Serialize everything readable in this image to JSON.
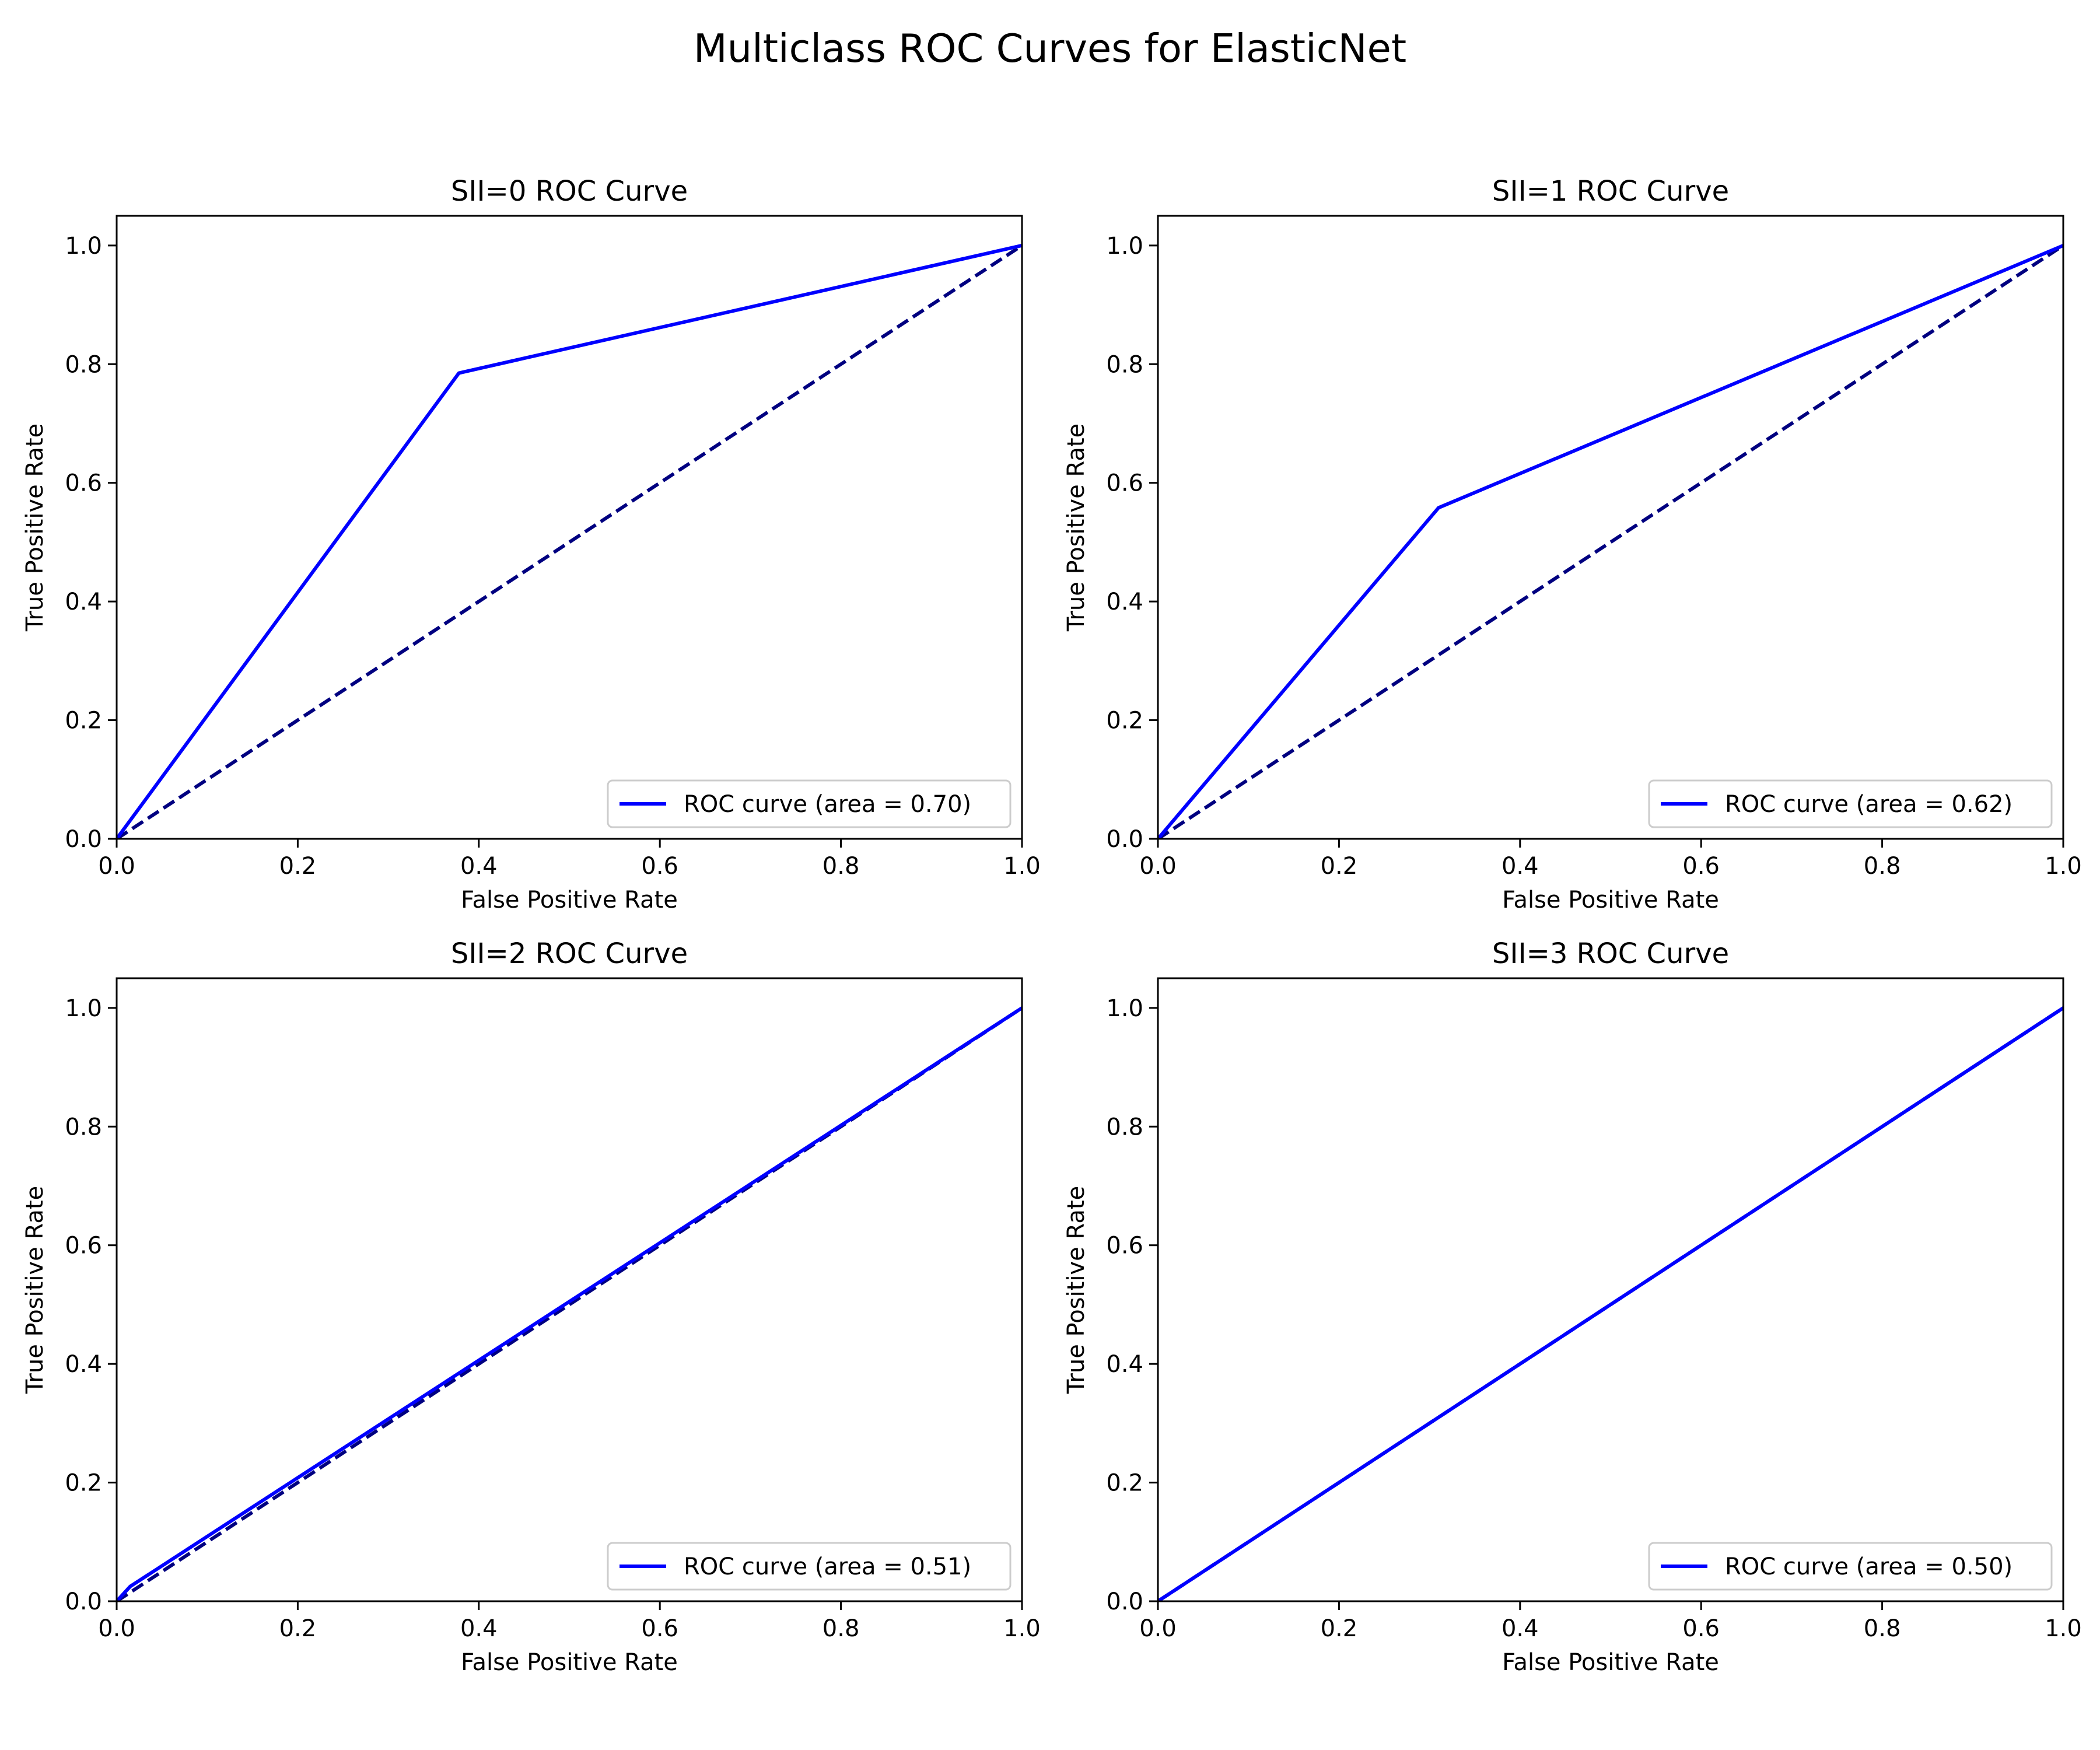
{
  "figure": {
    "title": "Multiclass ROC Curves for ElasticNet"
  },
  "colors": {
    "roc": "#0000ff",
    "chance": "#000080",
    "axes": "#000000",
    "legend_border": "#cccccc"
  },
  "chart_data": [
    {
      "type": "line",
      "title": "SII=0 ROC Curve",
      "xlabel": "False Positive Rate",
      "ylabel": "True Positive Rate",
      "xlim": [
        0.0,
        1.0
      ],
      "ylim": [
        0.0,
        1.05
      ],
      "xticks": [
        "0.0",
        "0.2",
        "0.4",
        "0.6",
        "0.8",
        "1.0"
      ],
      "yticks": [
        "0.0",
        "0.2",
        "0.4",
        "0.6",
        "0.8",
        "1.0"
      ],
      "legend_position": "lower right",
      "grid": false,
      "series": [
        {
          "name": "ROC curve (area = 0.70)",
          "style": "solid",
          "x": [
            0.0,
            0.378,
            1.0
          ],
          "y": [
            0.0,
            0.785,
            1.0
          ]
        },
        {
          "style": "dashed",
          "x": [
            0.0,
            1.0
          ],
          "y": [
            0.0,
            1.0
          ]
        }
      ]
    },
    {
      "type": "line",
      "title": "SII=1 ROC Curve",
      "xlabel": "False Positive Rate",
      "ylabel": "True Positive Rate",
      "xlim": [
        0.0,
        1.0
      ],
      "ylim": [
        0.0,
        1.05
      ],
      "xticks": [
        "0.0",
        "0.2",
        "0.4",
        "0.6",
        "0.8",
        "1.0"
      ],
      "yticks": [
        "0.0",
        "0.2",
        "0.4",
        "0.6",
        "0.8",
        "1.0"
      ],
      "legend_position": "lower right",
      "grid": false,
      "series": [
        {
          "name": "ROC curve (area = 0.62)",
          "style": "solid",
          "x": [
            0.0,
            0.31,
            1.0
          ],
          "y": [
            0.0,
            0.558,
            1.0
          ]
        },
        {
          "style": "dashed",
          "x": [
            0.0,
            1.0
          ],
          "y": [
            0.0,
            1.0
          ]
        }
      ]
    },
    {
      "type": "line",
      "title": "SII=2 ROC Curve",
      "xlabel": "False Positive Rate",
      "ylabel": "True Positive Rate",
      "xlim": [
        0.0,
        1.0
      ],
      "ylim": [
        0.0,
        1.05
      ],
      "xticks": [
        "0.0",
        "0.2",
        "0.4",
        "0.6",
        "0.8",
        "1.0"
      ],
      "yticks": [
        "0.0",
        "0.2",
        "0.4",
        "0.6",
        "0.8",
        "1.0"
      ],
      "legend_position": "lower right",
      "grid": false,
      "series": [
        {
          "name": "ROC curve (area = 0.51)",
          "style": "solid",
          "x": [
            0.0,
            0.015,
            1.0
          ],
          "y": [
            0.0,
            0.025,
            1.0
          ]
        },
        {
          "style": "dashed",
          "x": [
            0.0,
            1.0
          ],
          "y": [
            0.0,
            1.0
          ]
        }
      ]
    },
    {
      "type": "line",
      "title": "SII=3 ROC Curve",
      "xlabel": "False Positive Rate",
      "ylabel": "True Positive Rate",
      "xlim": [
        0.0,
        1.0
      ],
      "ylim": [
        0.0,
        1.05
      ],
      "xticks": [
        "0.0",
        "0.2",
        "0.4",
        "0.6",
        "0.8",
        "1.0"
      ],
      "yticks": [
        "0.0",
        "0.2",
        "0.4",
        "0.6",
        "0.8",
        "1.0"
      ],
      "legend_position": "lower right",
      "grid": false,
      "series": [
        {
          "name": "ROC curve (area = 0.50)",
          "style": "solid",
          "x": [
            0.0,
            1.0
          ],
          "y": [
            0.0,
            1.0
          ]
        },
        {
          "style": "dashed",
          "x": [
            0.0,
            1.0
          ],
          "y": [
            0.0,
            1.0
          ]
        }
      ]
    }
  ]
}
